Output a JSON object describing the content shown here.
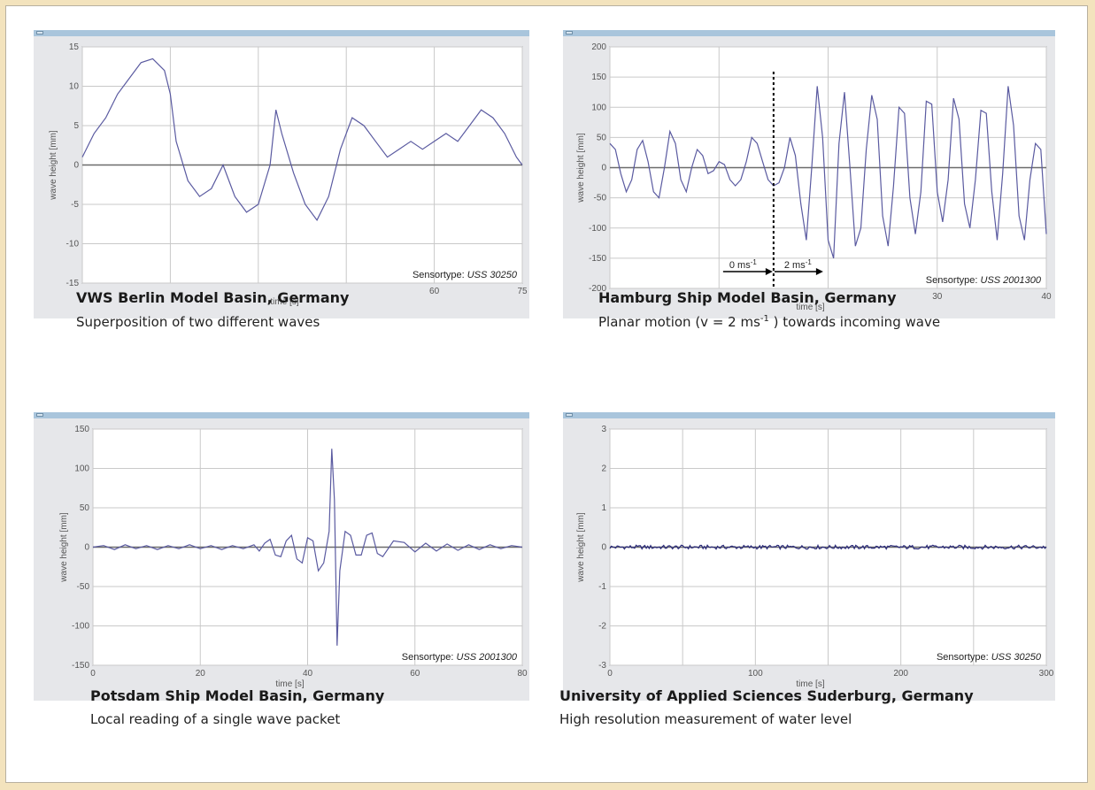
{
  "chart_data": [
    {
      "type": "line",
      "title": "VWS Berlin Model Basin, Germany",
      "subtitle": "Superposition of two different waves",
      "xlabel": "time [s]",
      "ylabel": "wave height [mm]",
      "sensor_label": "Sensortype: ",
      "sensor_model": "USS 30250",
      "xlim": [
        0,
        75
      ],
      "ylim": [
        -15,
        15
      ],
      "x_ticks": [
        0,
        15,
        30,
        45,
        60,
        75
      ],
      "x_tick_labels": [
        "",
        "",
        "",
        "",
        "60",
        "75"
      ],
      "y_ticks": [
        15,
        10,
        5,
        0,
        -5,
        -10,
        -15
      ],
      "y_tick_labels": [
        "15",
        "10",
        "5",
        "0",
        "-5",
        "-10",
        "-15"
      ],
      "grid": true,
      "series": [
        {
          "x": [
            0,
            2,
            4,
            6,
            8,
            10,
            12,
            14,
            15,
            16,
            18,
            20,
            22,
            24,
            26,
            28,
            30,
            32,
            33,
            34,
            36,
            38,
            40,
            42,
            44,
            46,
            48,
            50,
            52,
            54,
            56,
            58,
            60,
            62,
            64,
            66,
            68,
            70,
            72,
            74,
            75
          ],
          "y": [
            1,
            4,
            6,
            9,
            11,
            13,
            13.5,
            12,
            9,
            3,
            -2,
            -4,
            -3,
            0,
            -4,
            -6,
            -5,
            0,
            7,
            4,
            -1,
            -5,
            -7,
            -4,
            2,
            6,
            5,
            3,
            1,
            2,
            3,
            2,
            3,
            4,
            3,
            5,
            7,
            6,
            4,
            1,
            0
          ]
        }
      ]
    },
    {
      "type": "line",
      "title": "Hamburg Ship Model Basin, Germany",
      "subtitle_before": "Planar motion (v = 2 ms",
      "subtitle_sup": "-1",
      "subtitle_after": " ) towards incoming wave",
      "xlabel": "time [s]",
      "ylabel": "wave height [mm]",
      "sensor_label": "Sensortype: ",
      "sensor_model": "USS 2001300",
      "xlim": [
        0,
        40
      ],
      "ylim": [
        -200,
        200
      ],
      "x_ticks": [
        0,
        10,
        20,
        30,
        40
      ],
      "x_tick_labels": [
        "",
        "",
        "",
        "30",
        "40"
      ],
      "y_ticks": [
        200,
        150,
        100,
        50,
        0,
        -50,
        -100,
        -150,
        -200
      ],
      "y_tick_labels": [
        "200",
        "150",
        "100",
        "50",
        "0",
        "-50",
        "-100",
        "-150",
        "-200"
      ],
      "grid": true,
      "annotations": {
        "marker_x": 15,
        "before_speed": "0 ms",
        "after_speed": "2 ms",
        "speed_sup": "-1"
      },
      "series": [
        {
          "x": [
            0,
            0.5,
            1,
            1.5,
            2,
            2.5,
            3,
            3.5,
            4,
            4.5,
            5,
            5.5,
            6,
            6.5,
            7,
            7.5,
            8,
            8.5,
            9,
            9.5,
            10,
            10.5,
            11,
            11.5,
            12,
            12.5,
            13,
            13.5,
            14,
            14.5,
            15,
            15.5,
            16,
            16.5,
            17,
            17.5,
            18,
            18.5,
            19,
            19.5,
            20,
            20.5,
            21,
            21.5,
            22,
            22.5,
            23,
            23.5,
            24,
            24.5,
            25,
            25.5,
            26,
            26.5,
            27,
            27.5,
            28,
            28.5,
            29,
            29.5,
            30,
            30.5,
            31,
            31.5,
            32,
            32.5,
            33,
            33.5,
            34,
            34.5,
            35,
            35.5,
            36,
            36.5,
            37,
            37.5,
            38,
            38.5,
            39,
            39.5,
            40
          ],
          "y": [
            40,
            30,
            -10,
            -40,
            -20,
            30,
            45,
            10,
            -40,
            -50,
            0,
            60,
            40,
            -20,
            -40,
            0,
            30,
            20,
            -10,
            -5,
            10,
            5,
            -20,
            -30,
            -20,
            10,
            50,
            40,
            10,
            -20,
            -30,
            -25,
            0,
            50,
            20,
            -60,
            -120,
            0,
            135,
            50,
            -120,
            -150,
            40,
            125,
            0,
            -130,
            -100,
            30,
            120,
            80,
            -80,
            -130,
            -30,
            100,
            90,
            -50,
            -110,
            -40,
            110,
            105,
            -40,
            -90,
            -20,
            115,
            80,
            -60,
            -100,
            -20,
            95,
            90,
            -40,
            -120,
            -10,
            135,
            70,
            -80,
            -120,
            -20,
            40,
            30,
            -110
          ]
        }
      ]
    },
    {
      "type": "line",
      "title": "Potsdam Ship Model Basin, Germany",
      "subtitle": "Local reading of a single wave packet",
      "xlabel": "time [s]",
      "ylabel": "wave height [mm]",
      "sensor_label": "Sensortype: ",
      "sensor_model": "USS 2001300",
      "xlim": [
        0,
        80
      ],
      "ylim": [
        -150,
        150
      ],
      "x_ticks": [
        0,
        20,
        40,
        60,
        80
      ],
      "x_tick_labels": [
        "0",
        "20",
        "40",
        "60",
        "80"
      ],
      "y_ticks": [
        150,
        100,
        50,
        0,
        -50,
        -100,
        -150
      ],
      "y_tick_labels": [
        "150",
        "100",
        "50",
        "0",
        "-50",
        "-100",
        "-150"
      ],
      "grid": true,
      "series": [
        {
          "x": [
            0,
            2,
            4,
            6,
            8,
            10,
            12,
            14,
            16,
            18,
            20,
            22,
            24,
            26,
            28,
            30,
            31,
            32,
            33,
            34,
            35,
            36,
            37,
            38,
            39,
            40,
            41,
            42,
            43,
            44,
            44.5,
            45,
            45.5,
            46,
            47,
            48,
            49,
            50,
            51,
            52,
            53,
            54,
            56,
            58,
            60,
            62,
            64,
            66,
            68,
            70,
            72,
            74,
            76,
            78,
            80
          ],
          "y": [
            0,
            2,
            -3,
            3,
            -2,
            2,
            -3,
            2,
            -2,
            3,
            -2,
            2,
            -3,
            2,
            -2,
            3,
            -5,
            5,
            10,
            -10,
            -12,
            8,
            15,
            -15,
            -20,
            12,
            8,
            -30,
            -20,
            20,
            125,
            60,
            -125,
            -30,
            20,
            15,
            -10,
            -10,
            15,
            18,
            -8,
            -12,
            8,
            6,
            -6,
            5,
            -5,
            4,
            -4,
            3,
            -3,
            3,
            -2,
            2,
            0
          ]
        }
      ]
    },
    {
      "type": "line",
      "title": "University of Applied Sciences Suderburg, Germany",
      "subtitle": "High resolution measurement of water level",
      "xlabel": "time [s]",
      "ylabel": "wave height [mm]",
      "sensor_label": "Sensortype: ",
      "sensor_model": "USS 30250",
      "xlim": [
        0,
        300
      ],
      "ylim": [
        -3,
        3
      ],
      "x_ticks": [
        0,
        50,
        100,
        150,
        200,
        250,
        300
      ],
      "x_tick_labels": [
        "0",
        "",
        "100",
        "",
        "200",
        "",
        "300"
      ],
      "y_ticks": [
        3,
        2,
        1,
        0,
        -1,
        -2,
        -3
      ],
      "y_tick_labels": [
        "3",
        "2",
        "1",
        "0",
        "-1",
        "-2",
        "-3"
      ],
      "grid": true,
      "series": [
        {
          "x": [
            0,
            300
          ],
          "y": [
            0,
            0
          ],
          "noise_amplitude": 0.05
        }
      ]
    }
  ]
}
